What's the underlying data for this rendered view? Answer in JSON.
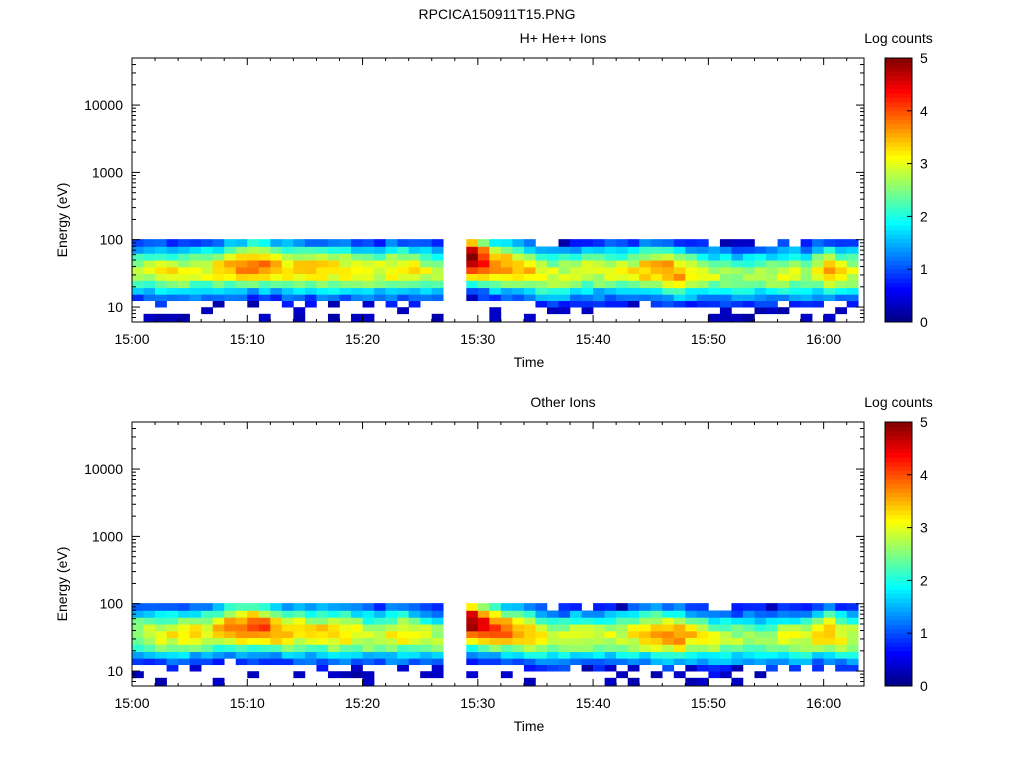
{
  "figure": {
    "title": "RPCICA150911T15.PNG"
  },
  "colorbar": {
    "label": "Log counts",
    "ticks": [
      "0",
      "1",
      "2",
      "3",
      "4",
      "5"
    ],
    "range": [
      0,
      5
    ],
    "colormap": [
      "#000080",
      "#0000ff",
      "#0080ff",
      "#00ffff",
      "#80ff80",
      "#ffff00",
      "#ff8000",
      "#ff0000",
      "#800000"
    ]
  },
  "chart_data": [
    {
      "type": "heatmap",
      "title": "H+ He++ Ions",
      "xlabel": "Time",
      "ylabel": "Energy (eV)",
      "xticks": [
        "15:00",
        "15:10",
        "15:20",
        "15:30",
        "15:40",
        "15:50",
        "16:00"
      ],
      "xlim_minutes": [
        0,
        63.5
      ],
      "yticks": [
        "10",
        "100",
        "1000",
        "10000"
      ],
      "ylim": [
        6,
        50000
      ],
      "yscale": "log",
      "time_bin_minutes": 1,
      "energy_bin_centers_eV": [
        7,
        9,
        11,
        14,
        17,
        22,
        28,
        35,
        44,
        56,
        70,
        90
      ],
      "data_gap_minutes": [
        26.5,
        29.5
      ],
      "profile": [
        {
          "t": 1,
          "peak": 2.7,
          "center_eV": 35
        },
        {
          "t": 3,
          "peak": 3.2,
          "center_eV": 33
        },
        {
          "t": 5,
          "peak": 3.0,
          "center_eV": 34
        },
        {
          "t": 7,
          "peak": 3.1,
          "center_eV": 36
        },
        {
          "t": 9,
          "peak": 3.7,
          "center_eV": 40
        },
        {
          "t": 11,
          "peak": 3.9,
          "center_eV": 42
        },
        {
          "t": 13,
          "peak": 3.4,
          "center_eV": 38
        },
        {
          "t": 15,
          "peak": 3.3,
          "center_eV": 37
        },
        {
          "t": 17,
          "peak": 3.4,
          "center_eV": 36
        },
        {
          "t": 19,
          "peak": 3.2,
          "center_eV": 35
        },
        {
          "t": 21,
          "peak": 2.9,
          "center_eV": 33
        },
        {
          "t": 23,
          "peak": 3.4,
          "center_eV": 36
        },
        {
          "t": 25,
          "peak": 3.2,
          "center_eV": 34
        },
        {
          "t": 26,
          "peak": 2.8,
          "center_eV": 32
        },
        {
          "t": 30,
          "peak": 4.9,
          "center_eV": 52
        },
        {
          "t": 31,
          "peak": 3.9,
          "center_eV": 42
        },
        {
          "t": 33,
          "peak": 3.7,
          "center_eV": 38
        },
        {
          "t": 35,
          "peak": 3.2,
          "center_eV": 32
        },
        {
          "t": 37,
          "peak": 2.9,
          "center_eV": 30
        },
        {
          "t": 39,
          "peak": 3.0,
          "center_eV": 33
        },
        {
          "t": 41,
          "peak": 2.9,
          "center_eV": 34
        },
        {
          "t": 43,
          "peak": 3.0,
          "center_eV": 33
        },
        {
          "t": 45,
          "peak": 3.6,
          "center_eV": 36
        },
        {
          "t": 47,
          "peak": 3.8,
          "center_eV": 33
        },
        {
          "t": 49,
          "peak": 3.1,
          "center_eV": 32
        },
        {
          "t": 51,
          "peak": 2.8,
          "center_eV": 30
        },
        {
          "t": 53,
          "peak": 2.7,
          "center_eV": 30
        },
        {
          "t": 55,
          "peak": 2.7,
          "center_eV": 30
        },
        {
          "t": 57,
          "peak": 3.0,
          "center_eV": 32
        },
        {
          "t": 59,
          "peak": 2.8,
          "center_eV": 31
        },
        {
          "t": 60,
          "peak": 3.6,
          "center_eV": 36
        },
        {
          "t": 62,
          "peak": 3.0,
          "center_eV": 32
        }
      ]
    },
    {
      "type": "heatmap",
      "title": "Other Ions",
      "xlabel": "Time",
      "ylabel": "Energy (eV)",
      "xticks": [
        "15:00",
        "15:10",
        "15:20",
        "15:30",
        "15:40",
        "15:50",
        "16:00"
      ],
      "xlim_minutes": [
        0,
        63.5
      ],
      "yticks": [
        "10",
        "100",
        "1000",
        "10000"
      ],
      "ylim": [
        6,
        50000
      ],
      "yscale": "log",
      "time_bin_minutes": 1,
      "energy_bin_centers_eV": [
        7,
        9,
        11,
        14,
        17,
        22,
        28,
        35,
        44,
        56,
        70,
        90
      ],
      "data_gap_minutes": [
        26.5,
        29.5
      ],
      "profile": [
        {
          "t": 1,
          "peak": 2.8,
          "center_eV": 36
        },
        {
          "t": 3,
          "peak": 3.1,
          "center_eV": 34
        },
        {
          "t": 5,
          "peak": 3.2,
          "center_eV": 36
        },
        {
          "t": 7,
          "peak": 3.2,
          "center_eV": 38
        },
        {
          "t": 9,
          "peak": 3.9,
          "center_eV": 44
        },
        {
          "t": 11,
          "peak": 4.1,
          "center_eV": 44
        },
        {
          "t": 13,
          "peak": 3.6,
          "center_eV": 40
        },
        {
          "t": 15,
          "peak": 3.3,
          "center_eV": 38
        },
        {
          "t": 17,
          "peak": 3.4,
          "center_eV": 37
        },
        {
          "t": 19,
          "peak": 3.3,
          "center_eV": 36
        },
        {
          "t": 21,
          "peak": 2.9,
          "center_eV": 33
        },
        {
          "t": 23,
          "peak": 3.2,
          "center_eV": 36
        },
        {
          "t": 25,
          "peak": 3.1,
          "center_eV": 34
        },
        {
          "t": 26,
          "peak": 2.8,
          "center_eV": 32
        },
        {
          "t": 30,
          "peak": 4.9,
          "center_eV": 52
        },
        {
          "t": 31,
          "peak": 4.1,
          "center_eV": 44
        },
        {
          "t": 33,
          "peak": 3.8,
          "center_eV": 38
        },
        {
          "t": 35,
          "peak": 3.3,
          "center_eV": 33
        },
        {
          "t": 37,
          "peak": 2.9,
          "center_eV": 30
        },
        {
          "t": 39,
          "peak": 3.0,
          "center_eV": 33
        },
        {
          "t": 41,
          "peak": 2.9,
          "center_eV": 33
        },
        {
          "t": 43,
          "peak": 3.0,
          "center_eV": 33
        },
        {
          "t": 45,
          "peak": 3.6,
          "center_eV": 36
        },
        {
          "t": 47,
          "peak": 3.9,
          "center_eV": 34
        },
        {
          "t": 49,
          "peak": 3.2,
          "center_eV": 32
        },
        {
          "t": 51,
          "peak": 2.8,
          "center_eV": 30
        },
        {
          "t": 53,
          "peak": 2.7,
          "center_eV": 30
        },
        {
          "t": 55,
          "peak": 2.7,
          "center_eV": 30
        },
        {
          "t": 57,
          "peak": 3.0,
          "center_eV": 32
        },
        {
          "t": 59,
          "peak": 2.9,
          "center_eV": 31
        },
        {
          "t": 60,
          "peak": 3.7,
          "center_eV": 38
        },
        {
          "t": 62,
          "peak": 3.0,
          "center_eV": 32
        }
      ]
    }
  ]
}
